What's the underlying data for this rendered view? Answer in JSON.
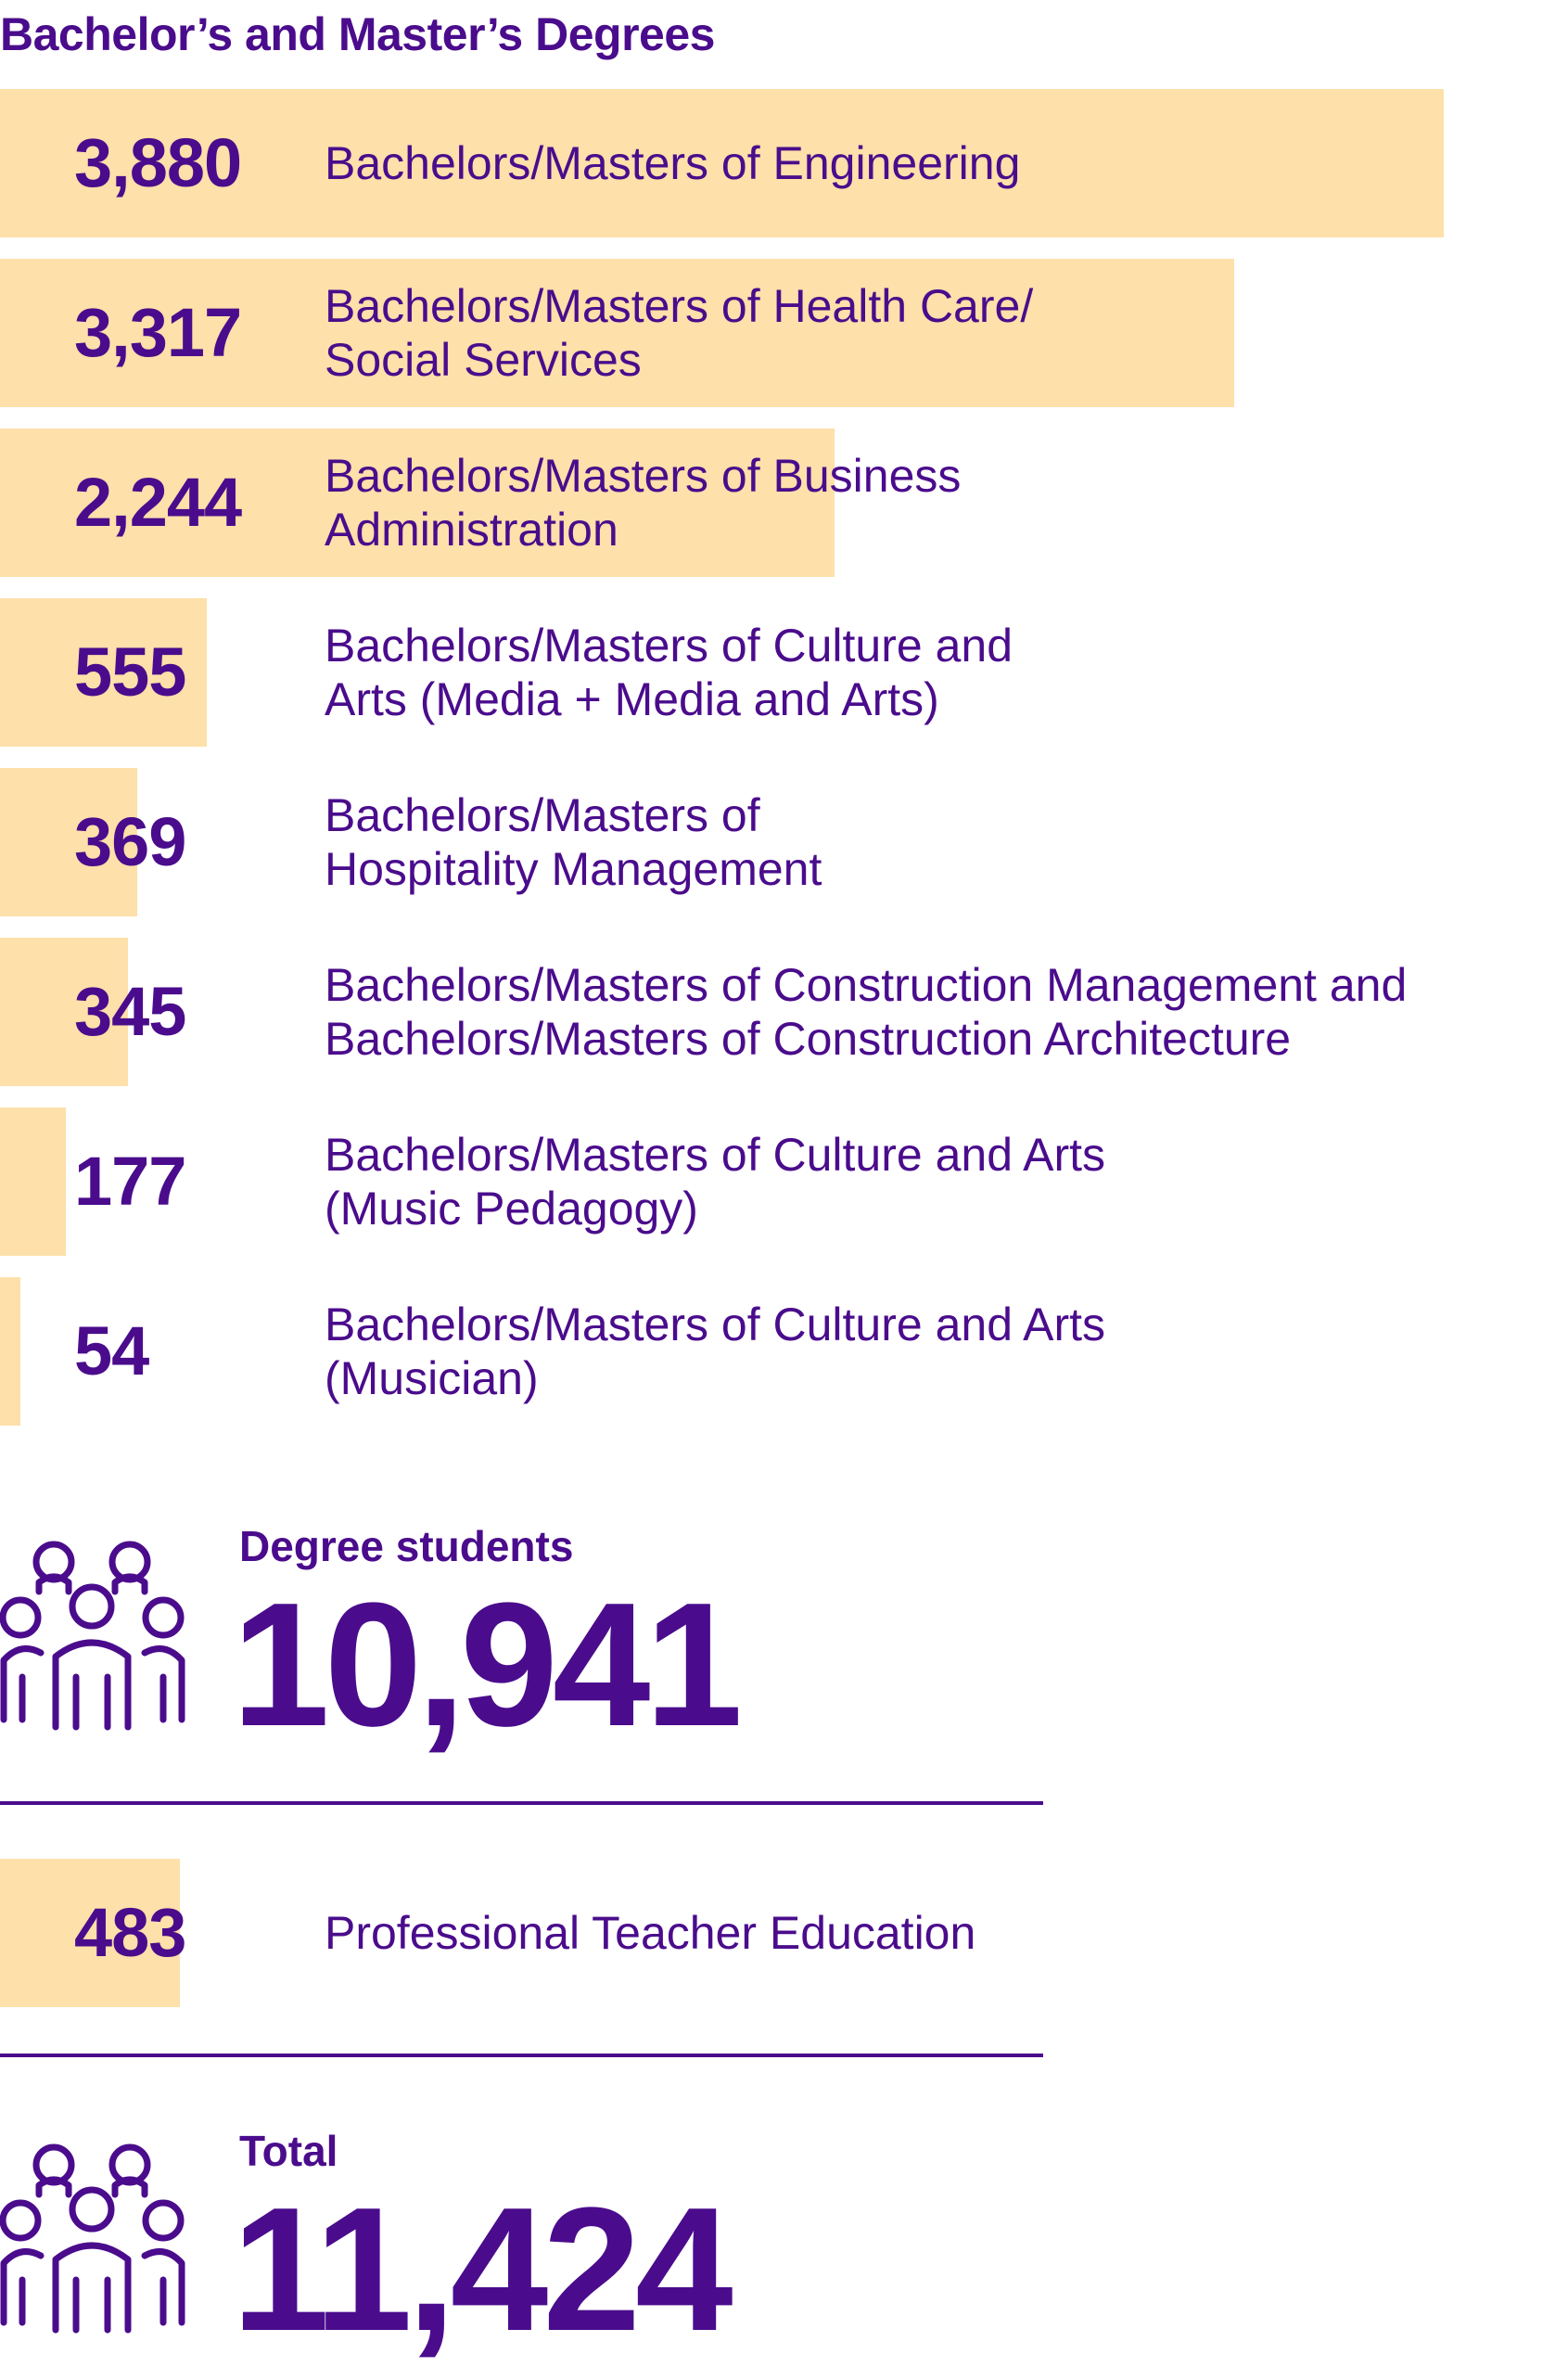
{
  "title": "Bachelor’s and Master’s Degrees",
  "chart_data": {
    "type": "bar",
    "orientation": "horizontal",
    "title": "Bachelor’s and Master’s Degrees",
    "categories": [
      "Bachelors/Masters of Engineering",
      "Bachelors/Masters of Health Care/\nSocial Services",
      "Bachelors/Masters of Business\nAdministration",
      "Bachelors/Masters of Culture and\nArts (Media + Media and Arts)",
      "Bachelors/Masters of\nHospitality Management",
      "Bachelors/Masters of Construction Management and\nBachelors/Masters of Construction Architecture",
      "Bachelors/Masters of Culture and Arts\n(Music Pedagogy)",
      "Bachelors/Masters of Culture and Arts\n(Musician)"
    ],
    "values": [
      3880,
      3317,
      2244,
      555,
      369,
      345,
      177,
      54
    ],
    "value_labels": [
      "3,880",
      "3,317",
      "2,244",
      "555",
      "369",
      "345",
      "177",
      "54"
    ],
    "xlim": [
      0,
      4050
    ],
    "bar_color": "#fde0aa",
    "text_color": "#4a0c8c",
    "grid": false,
    "legend": "none"
  },
  "degree_students": {
    "label": "Degree students",
    "value": "10,941",
    "icon": "people-group-icon"
  },
  "teacher_education": {
    "label": "Professional Teacher Education",
    "value": 483,
    "value_label": "483"
  },
  "total": {
    "label": "Total",
    "value": "11,424",
    "icon": "people-group-icon"
  }
}
